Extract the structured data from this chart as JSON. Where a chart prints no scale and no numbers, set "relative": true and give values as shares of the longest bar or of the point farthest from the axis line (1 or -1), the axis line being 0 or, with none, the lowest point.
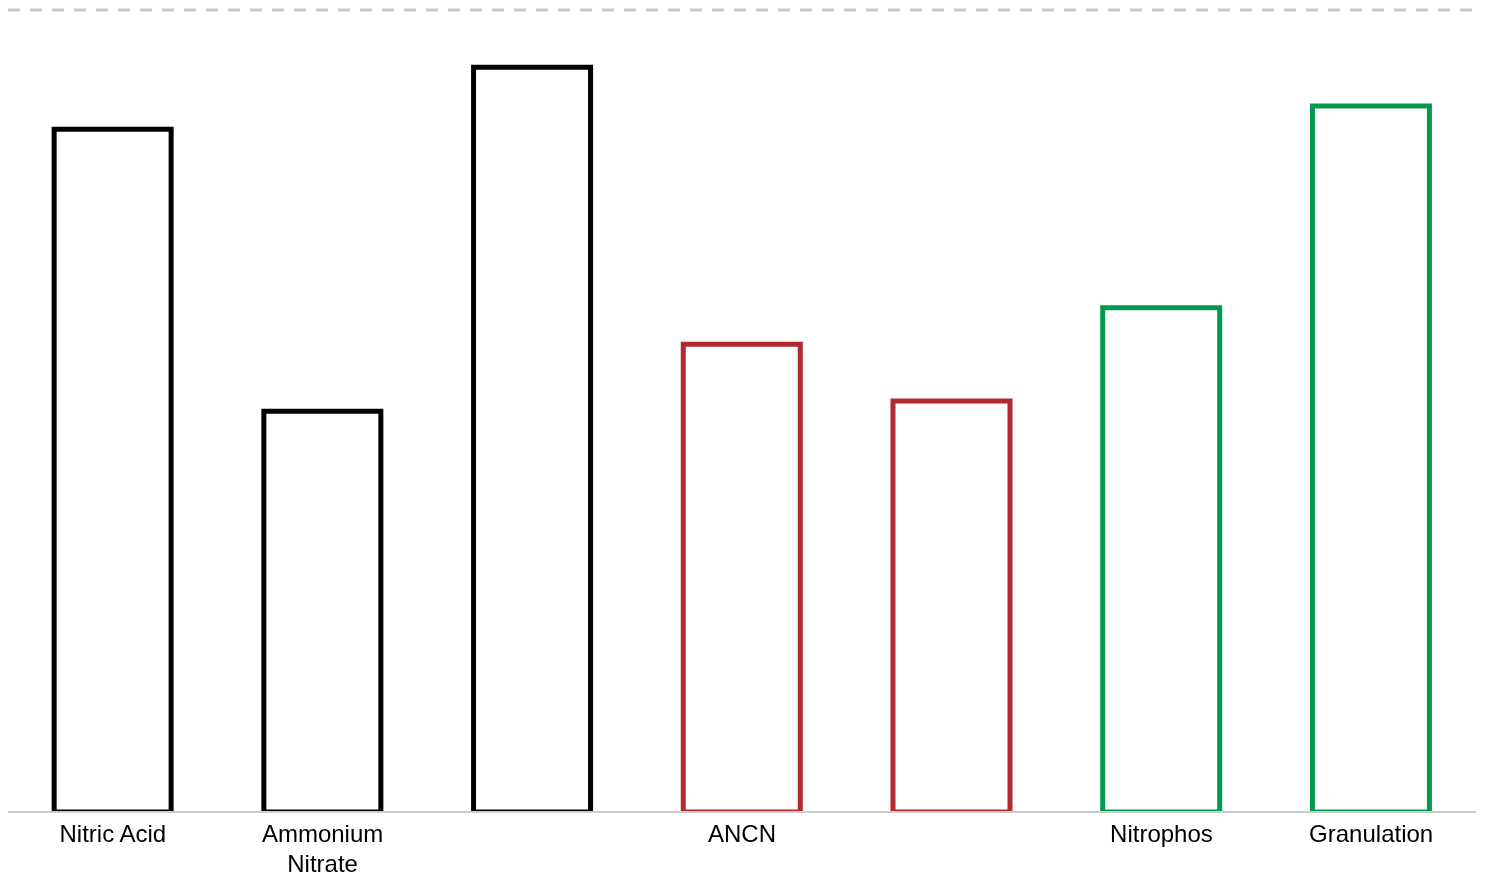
{
  "chart_data": {
    "type": "bar",
    "relative": true,
    "categories": [
      "Nitric Acid",
      "Ammonium Nitrate",
      null,
      "ANCN",
      null,
      "Nitrophos",
      "Granulation"
    ],
    "values": [
      0.917,
      0.538,
      1,
      0.628,
      0.552,
      0.677,
      0.948
    ],
    "colors": [
      "#000000",
      "#000000",
      "#000000",
      "#b22a2e",
      "#b22a2e",
      "#009a4e",
      "#009a4e"
    ],
    "ref_lines": [
      {
        "axis": "y",
        "value": 1.077,
        "color": "#c8c8c8",
        "line_style": "dashed"
      }
    ],
    "grid": false,
    "legend": false
  }
}
